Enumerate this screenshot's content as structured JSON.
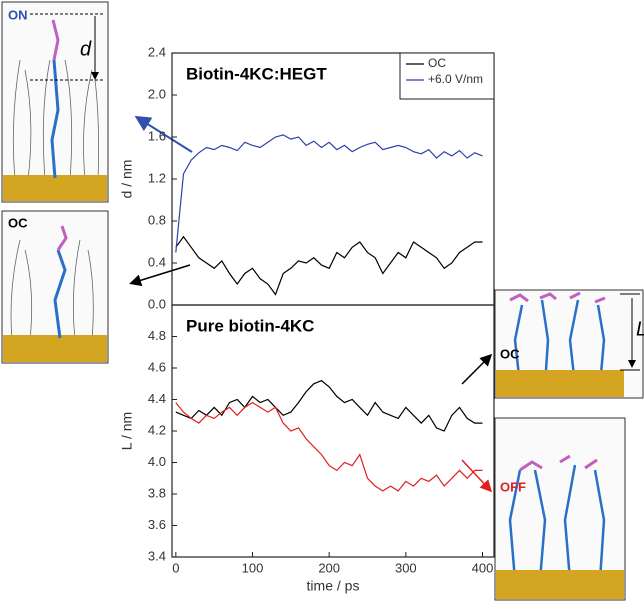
{
  "chart_data": [
    {
      "type": "line",
      "title": "Biotin-4KC:HEGT",
      "y_label": "d / nm",
      "x": [
        0,
        10,
        20,
        30,
        40,
        50,
        60,
        70,
        80,
        90,
        100,
        110,
        120,
        130,
        140,
        150,
        160,
        170,
        180,
        190,
        200,
        210,
        220,
        230,
        240,
        250,
        260,
        270,
        280,
        290,
        300,
        310,
        320,
        330,
        340,
        350,
        360,
        370,
        380,
        390,
        400
      ],
      "xlim": [
        -5,
        415
      ],
      "ylim": [
        0,
        2.4
      ],
      "yticks": [
        {
          "value": 0,
          "label": "0.0"
        },
        0.4,
        0.8,
        1.2,
        1.6,
        {
          "value": 2,
          "label": "2.0"
        },
        2.4
      ],
      "legend": "upper right",
      "annotations": [
        "ON",
        "OC",
        "d"
      ],
      "series": [
        {
          "name": "OC",
          "color": "#000000",
          "values": [
            0.55,
            0.65,
            0.55,
            0.45,
            0.4,
            0.35,
            0.42,
            0.3,
            0.2,
            0.3,
            0.35,
            0.25,
            0.2,
            0.1,
            0.3,
            0.35,
            0.42,
            0.4,
            0.45,
            0.38,
            0.35,
            0.5,
            0.45,
            0.55,
            0.6,
            0.5,
            0.45,
            0.3,
            0.4,
            0.5,
            0.45,
            0.6,
            0.55,
            0.5,
            0.45,
            0.35,
            0.4,
            0.5,
            0.55,
            0.6,
            0.6
          ]
        },
        {
          "name": "+6.0 V/nm",
          "color": "#3040a8",
          "values": [
            0.5,
            1.25,
            1.38,
            1.45,
            1.5,
            1.48,
            1.52,
            1.5,
            1.47,
            1.55,
            1.52,
            1.5,
            1.55,
            1.6,
            1.62,
            1.58,
            1.6,
            1.52,
            1.56,
            1.5,
            1.55,
            1.48,
            1.52,
            1.46,
            1.5,
            1.53,
            1.55,
            1.48,
            1.5,
            1.52,
            1.5,
            1.46,
            1.44,
            1.48,
            1.4,
            1.46,
            1.42,
            1.47,
            1.4,
            1.45,
            1.42
          ]
        }
      ]
    },
    {
      "type": "line",
      "title": "Pure biotin-4KC",
      "x_label": "time / ps",
      "y_label": "L / nm",
      "x": [
        0,
        10,
        20,
        30,
        40,
        50,
        60,
        70,
        80,
        90,
        100,
        110,
        120,
        130,
        140,
        150,
        160,
        170,
        180,
        190,
        200,
        210,
        220,
        230,
        240,
        250,
        260,
        270,
        280,
        290,
        300,
        310,
        320,
        330,
        340,
        350,
        360,
        370,
        380,
        390,
        400
      ],
      "xlim": [
        -5,
        415
      ],
      "xticks": [
        0,
        100,
        200,
        300,
        400
      ],
      "ylim": [
        3.4,
        5.0
      ],
      "yticks": [
        3.4,
        3.6,
        3.8,
        {
          "value": 4,
          "label": "4.0"
        },
        4.2,
        4.4,
        4.6,
        4.8
      ],
      "annotations": [
        "L"
      ],
      "series": [
        {
          "name": "OC",
          "color": "#000000",
          "values": [
            4.32,
            4.3,
            4.28,
            4.33,
            4.3,
            4.35,
            4.3,
            4.38,
            4.4,
            4.35,
            4.42,
            4.38,
            4.4,
            4.35,
            4.3,
            4.32,
            4.38,
            4.45,
            4.5,
            4.52,
            4.48,
            4.42,
            4.38,
            4.4,
            4.35,
            4.3,
            4.38,
            4.32,
            4.3,
            4.28,
            4.35,
            4.3,
            4.25,
            4.3,
            4.22,
            4.2,
            4.3,
            4.35,
            4.28,
            4.25,
            4.25
          ]
        },
        {
          "name": "OFF",
          "color": "#e02020",
          "values": [
            4.38,
            4.32,
            4.28,
            4.25,
            4.3,
            4.28,
            4.32,
            4.35,
            4.3,
            4.35,
            4.38,
            4.35,
            4.32,
            4.35,
            4.25,
            4.2,
            4.22,
            4.15,
            4.1,
            4.05,
            3.98,
            3.95,
            4.0,
            3.98,
            4.05,
            3.9,
            3.85,
            3.82,
            3.85,
            3.82,
            3.88,
            3.85,
            3.9,
            3.88,
            3.92,
            3.85,
            3.9,
            3.95,
            3.9,
            3.95,
            3.95
          ]
        }
      ]
    }
  ]
}
